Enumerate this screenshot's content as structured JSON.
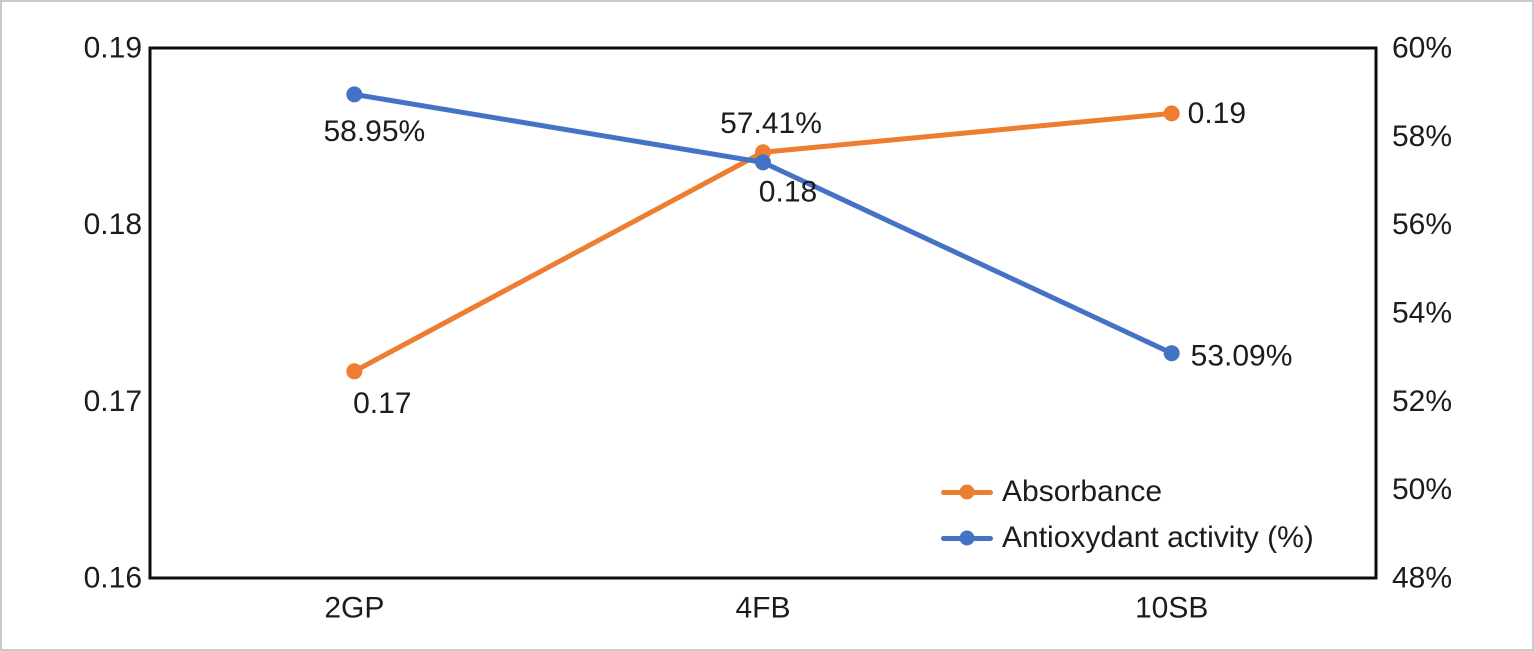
{
  "chart_data": {
    "type": "line",
    "title": "",
    "categories": [
      "2GP",
      "4FB",
      "10SB"
    ],
    "series": [
      {
        "name": "Absorbance",
        "color": "#ED7D31",
        "axis": "left",
        "values": [
          0.17,
          0.18,
          0.19
        ],
        "plot_values": [
          0.1717,
          0.1841,
          0.1863
        ],
        "data_labels": [
          "0.17",
          "0.18",
          "0.19"
        ]
      },
      {
        "name": "Antioxydant activity (%)",
        "color": "#4472C4",
        "axis": "right",
        "values": [
          58.95,
          57.41,
          53.09
        ],
        "plot_values": [
          58.95,
          57.41,
          53.09
        ],
        "data_labels": [
          "58.95%",
          "57.41%",
          "53.09%"
        ]
      }
    ],
    "left_axis": {
      "min": 0.16,
      "max": 0.19,
      "ticks": [
        "0.16",
        "0.17",
        "0.18",
        "0.19"
      ]
    },
    "right_axis": {
      "min": 48,
      "max": 60,
      "ticks": [
        "48%",
        "50%",
        "52%",
        "54%",
        "56%",
        "58%",
        "60%"
      ]
    },
    "grid": "off",
    "legend_position": "inside-bottom-right",
    "colors": {
      "plot_border": "#0d0d0d",
      "text": "#1c1c1c",
      "frame_border": "#c9c9c9",
      "background": "#ffffff"
    }
  }
}
